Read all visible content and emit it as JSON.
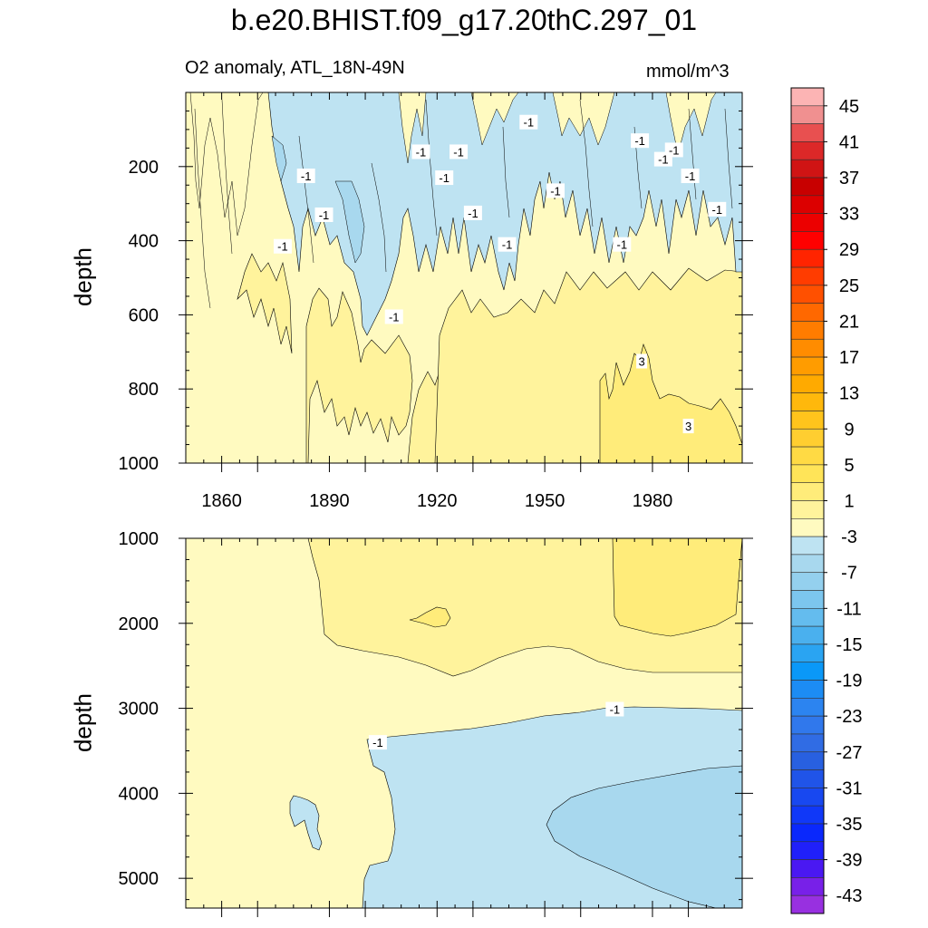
{
  "chart_data": [
    {
      "type": "heatmap",
      "panel": "upper",
      "title": "b.e20.BHIST.f09_g17.20thC.297_01",
      "subtitle": "O2 anomaly, ATL_18N-49N",
      "units": "mmol/m^3",
      "xlabel": "",
      "ylabel": "depth",
      "xlim": [
        1850,
        2005
      ],
      "ylim": [
        1000,
        0
      ],
      "x_ticks": [
        1860,
        1890,
        1920,
        1950,
        1980
      ],
      "y_ticks": [
        200,
        400,
        600,
        800,
        1000
      ],
      "contour_labels": [
        {
          "text": "-1",
          "x": 1945.5,
          "y": 80
        },
        {
          "text": "-1",
          "x": 1976.5,
          "y": 130
        },
        {
          "text": "-1",
          "x": 1986,
          "y": 155
        },
        {
          "text": "-1",
          "x": 1915.5,
          "y": 160
        },
        {
          "text": "-1",
          "x": 1926,
          "y": 160
        },
        {
          "text": "-1",
          "x": 1983,
          "y": 180
        },
        {
          "text": "-1",
          "x": 1883.5,
          "y": 225
        },
        {
          "text": "-1",
          "x": 1922,
          "y": 230
        },
        {
          "text": "-1",
          "x": 1990.5,
          "y": 225
        },
        {
          "text": "-1",
          "x": 1953,
          "y": 265
        },
        {
          "text": "-1",
          "x": 1888.5,
          "y": 330
        },
        {
          "text": "-1",
          "x": 1930,
          "y": 325
        },
        {
          "text": "-1",
          "x": 1998,
          "y": 315
        },
        {
          "text": "-1",
          "x": 1877,
          "y": 415
        },
        {
          "text": "-1",
          "x": 1939.5,
          "y": 410
        },
        {
          "text": "-1",
          "x": 1971.5,
          "y": 410
        },
        {
          "text": "-1",
          "x": 1908,
          "y": 605
        },
        {
          "text": "3",
          "x": 1977,
          "y": 725
        },
        {
          "text": "3",
          "x": 1990,
          "y": 900
        }
      ]
    },
    {
      "type": "heatmap",
      "panel": "lower",
      "xlabel": "",
      "ylabel": "depth",
      "xlim": [
        1850,
        2005
      ],
      "ylim": [
        5350,
        1000
      ],
      "y_ticks": [
        1000,
        2000,
        3000,
        4000,
        5000
      ],
      "contour_labels": [
        {
          "text": "-1",
          "x": 1969.5,
          "y": 3010
        },
        {
          "text": "-1",
          "x": 1903.5,
          "y": 3400
        }
      ]
    },
    {
      "type": "colorbar",
      "units": "mmol/m^3",
      "levels": [
        -45,
        -43,
        -41,
        -39,
        -37,
        -35,
        -33,
        -31,
        -29,
        -27,
        -25,
        -23,
        -21,
        -19,
        -17,
        -15,
        -13,
        -11,
        -9,
        -7,
        -5,
        -3,
        -1,
        1,
        3,
        5,
        7,
        9,
        11,
        13,
        15,
        17,
        19,
        21,
        23,
        25,
        27,
        29,
        31,
        33,
        35,
        37,
        39,
        41,
        43,
        45
      ],
      "tick_labels": [
        "45",
        "41",
        "37",
        "33",
        "29",
        "25",
        "21",
        "17",
        "13",
        "9",
        "5",
        "1",
        "-3",
        "-7",
        "-11",
        "-15",
        "-19",
        "-23",
        "-27",
        "-31",
        "-35",
        "-39",
        "-43"
      ],
      "colors": [
        "#FCB4B4",
        "#F09090",
        "#E85050",
        "#DC2828",
        "#D01414",
        "#C80000",
        "#DC0000",
        "#EC0000",
        "#FF0000",
        "#FF2400",
        "#FF3C00",
        "#FF5000",
        "#FF6800",
        "#FF7C00",
        "#FF8C00",
        "#FF9C00",
        "#FFAA00",
        "#FFB80C",
        "#FFC41C",
        "#FFCE30",
        "#FFDA44",
        "#FFE458",
        "#FFEC7A",
        "#FFF39C",
        "#FFFAC0",
        "#BEE3F2",
        "#A8D8EE",
        "#94D0EE",
        "#7CC6EE",
        "#64BCEE",
        "#4AB0EE",
        "#2AA4F2",
        "#0A98F8",
        "#1C8CF4",
        "#2C84F0",
        "#3078EC",
        "#306CE4",
        "#2860E0",
        "#2054E8",
        "#1848F0",
        "#1038F8",
        "#0A28FC",
        "#2020FA",
        "#4A18F2",
        "#7820E8",
        "#9830E0"
      ]
    }
  ]
}
